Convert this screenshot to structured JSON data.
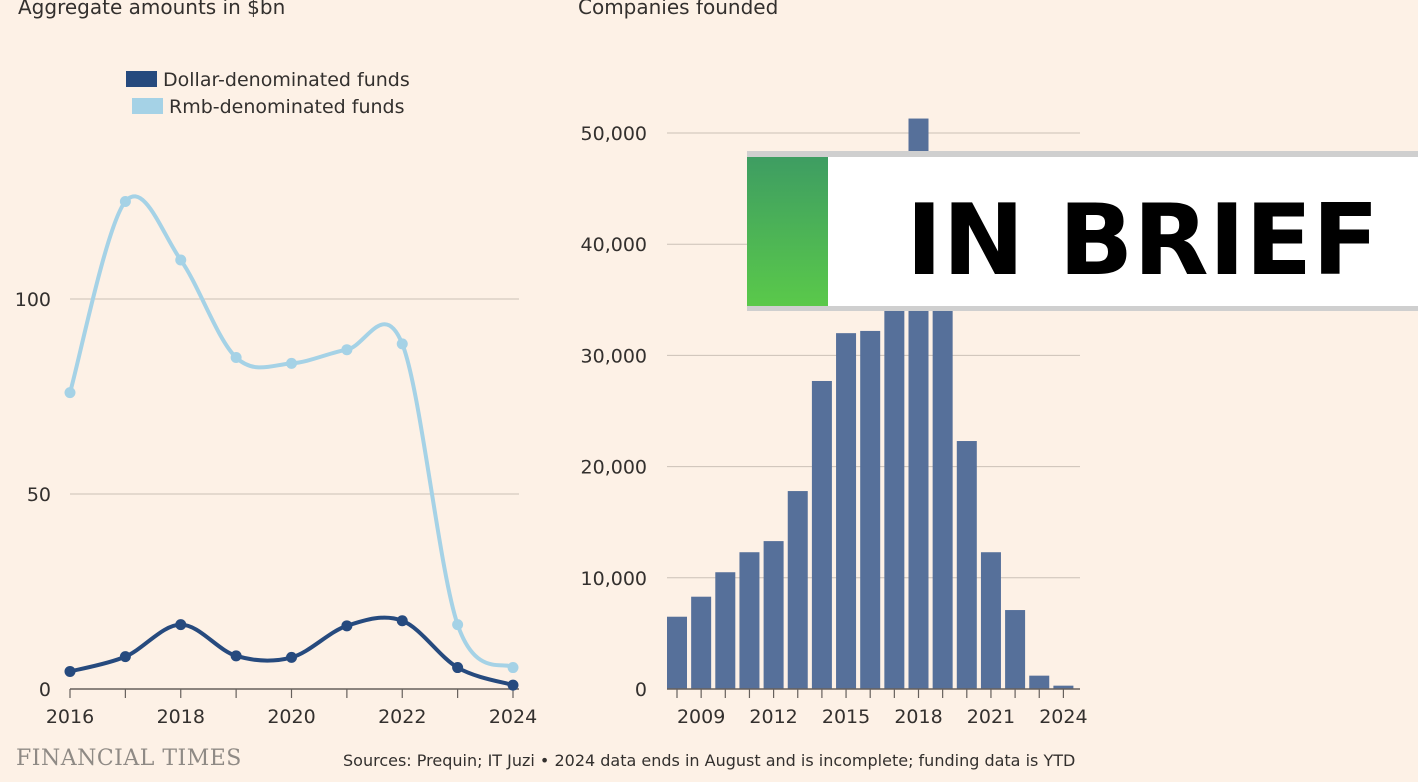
{
  "chart_data": [
    {
      "type": "line",
      "title": "",
      "subtitle": "Aggregate amounts in $bn",
      "x": [
        2016,
        2017,
        2018,
        2019,
        2020,
        2021,
        2022,
        2023,
        2024
      ],
      "xticks": [
        "2016",
        "2018",
        "2020",
        "2022",
        "2024"
      ],
      "yticks": [
        "0",
        "50",
        "100"
      ],
      "ylim": [
        0,
        100
      ],
      "grid": true,
      "legend_position": "top-center",
      "series": [
        {
          "name": "Dollar-denominated funds",
          "color": "#264a7e",
          "values": [
            4.5,
            8.3,
            16.5,
            8.5,
            8.1,
            16.2,
            17.5,
            5.5,
            1.0
          ]
        },
        {
          "name": "Rmb-denominated funds",
          "color": "#a5d2e6",
          "values": [
            76,
            125,
            110,
            85,
            83.5,
            87,
            88.5,
            16.5,
            5.5
          ]
        }
      ]
    },
    {
      "type": "bar",
      "title": "",
      "subtitle": "Companies founded",
      "categories": [
        "2008",
        "2009",
        "2010",
        "2011",
        "2012",
        "2013",
        "2014",
        "2015",
        "2016",
        "2017",
        "2018",
        "2019",
        "2020",
        "2021",
        "2022",
        "2023",
        "2024"
      ],
      "values": [
        6500,
        8300,
        10500,
        12300,
        13300,
        17800,
        27700,
        32000,
        32200,
        35000,
        51300,
        35000,
        22300,
        12300,
        7100,
        1200,
        300
      ],
      "xticks": [
        "2009",
        "2012",
        "2015",
        "2018",
        "2021",
        "2024"
      ],
      "yticks": [
        "0",
        "10,000",
        "20,000",
        "30,000",
        "40,000",
        "50,000"
      ],
      "ylim": [
        0,
        50000
      ],
      "color": "#56709a",
      "grid": true
    }
  ],
  "footer": {
    "publisher": "FINANCIAL TIMES",
    "sources": "Sources: Prequin; IT Juzi • 2024 data ends in August and is incomplete; funding data is YTD"
  },
  "overlay": {
    "label": "IN BRIEF",
    "accent_top": "#3e9d62",
    "accent_bottom": "#5ac94a"
  }
}
